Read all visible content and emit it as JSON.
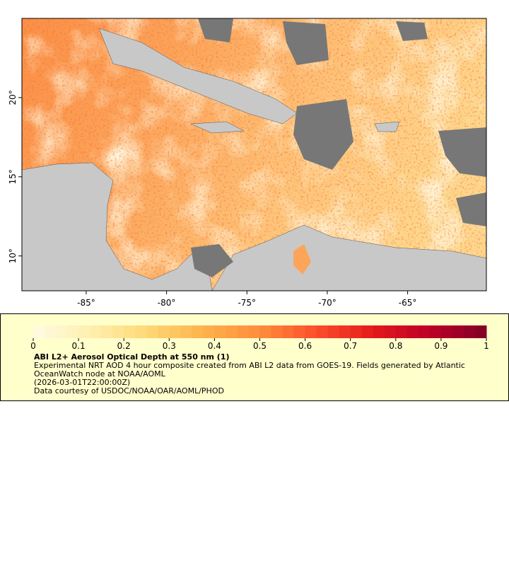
{
  "map": {
    "xlim": [
      -89,
      -60.1
    ],
    "ylim": [
      7.8,
      25
    ],
    "xticks": [
      {
        "value": -85,
        "label": "-85°"
      },
      {
        "value": -80,
        "label": "-80°"
      },
      {
        "value": -75,
        "label": "-75°"
      },
      {
        "value": -70,
        "label": "-70°"
      },
      {
        "value": -65,
        "label": "-65°"
      }
    ],
    "yticks": [
      {
        "value": 10,
        "label": "10°"
      },
      {
        "value": 15,
        "label": "15°"
      },
      {
        "value": 20,
        "label": "20°"
      }
    ]
  },
  "colorbar": {
    "lim": [
      0,
      1
    ],
    "ticks": [
      0,
      0.1,
      0.2,
      0.3,
      0.4,
      0.5,
      0.6,
      0.7,
      0.8,
      0.9,
      1
    ],
    "colormap": [
      "#fffbe3",
      "#ffefb0",
      "#fed976",
      "#feb24c",
      "#fd8d3c",
      "#fc4e2a",
      "#e31a1c",
      "#bd0026",
      "#800026"
    ]
  },
  "legend": {
    "title": "ABI L2+ Aerosol Optical Depth at 550 nm (1)",
    "description": "Experimental NRT AOD 4 hour composite created from ABI L2 data from GOES-19. Fields generated by Atlantic OceanWatch node at NOAA/AOML",
    "time": "(2026-03-01T22:00:00Z)",
    "credit": "Data courtesy of USDOC/NOAA/OAR/AOML/PHOD"
  }
}
